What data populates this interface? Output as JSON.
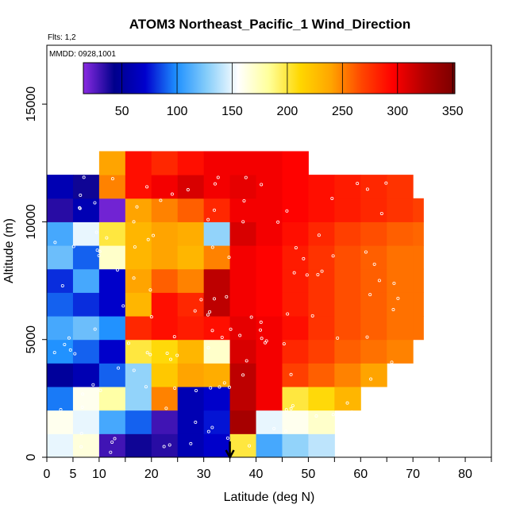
{
  "chart_data": {
    "type": "heatmap",
    "title": "ATOM3 Northeast_Pacific_1 Wind_Direction",
    "subtitle_flights": "Flts: 1,2",
    "subtitle_dates": "MMDD: 0928,1001",
    "xlabel": "Latitude (deg N)",
    "ylabel": "Altitude (m)",
    "xlim": [
      0,
      85
    ],
    "ylim": [
      0,
      18000
    ],
    "x_ticks": [
      0,
      5,
      10,
      20,
      30,
      40,
      50,
      60,
      70,
      80
    ],
    "x_minor_ticks": [
      15,
      25,
      35,
      45,
      55,
      65,
      75,
      85
    ],
    "y_ticks": [
      0,
      5000,
      10000,
      15000
    ],
    "colorbar": {
      "range": [
        15,
        352
      ],
      "ticks": [
        50,
        100,
        150,
        200,
        250,
        300,
        350
      ],
      "colors": [
        "#8a2be2",
        "#00008b",
        "#0000cd",
        "#1e90ff",
        "#87cefa",
        "#ffffff",
        "#ffff99",
        "#ffd700",
        "#ffa500",
        "#ff4500",
        "#ff0000",
        "#b20000",
        "#7a0000"
      ]
    },
    "latitude_marker": 35,
    "field": {
      "description_levels": "wind direction (deg) by latitude band and altitude band",
      "lat_edges": [
        0,
        5,
        10,
        15,
        20,
        25,
        30,
        35,
        40,
        45,
        50,
        55,
        60,
        65,
        70,
        72
      ],
      "alt_edges": [
        0,
        1000,
        2000,
        3000,
        4000,
        5000,
        6000,
        7000,
        8000,
        9000,
        10000,
        11000,
        12000,
        13000
      ],
      "values": [
        [
          150,
          165,
          30,
          40,
          35,
          60,
          70,
          200,
          110,
          130,
          140,
          null,
          null,
          null,
          null
        ],
        [
          160,
          150,
          110,
          90,
          30,
          60,
          75,
          330,
          150,
          160,
          170,
          null,
          null,
          null,
          null
        ],
        [
          95,
          160,
          180,
          130,
          250,
          60,
          70,
          320,
          300,
          200,
          210,
          230,
          null,
          null,
          null
        ],
        [
          50,
          60,
          90,
          130,
          220,
          240,
          235,
          320,
          300,
          270,
          260,
          250,
          240,
          null,
          null
        ],
        [
          100,
          90,
          70,
          200,
          210,
          230,
          170,
          310,
          300,
          280,
          270,
          260,
          255,
          250,
          null
        ],
        [
          110,
          120,
          100,
          280,
          290,
          285,
          290,
          305,
          300,
          290,
          275,
          265,
          260,
          255,
          255
        ],
        [
          90,
          80,
          70,
          230,
          290,
          280,
          320,
          300,
          295,
          285,
          275,
          265,
          260,
          255,
          255
        ],
        [
          80,
          110,
          70,
          240,
          260,
          250,
          320,
          300,
          295,
          285,
          275,
          265,
          260,
          255,
          255
        ],
        [
          120,
          90,
          170,
          230,
          240,
          230,
          250,
          300,
          295,
          285,
          275,
          265,
          260,
          255,
          255
        ],
        [
          110,
          150,
          200,
          230,
          240,
          235,
          130,
          310,
          300,
          290,
          280,
          270,
          265,
          260,
          258
        ],
        [
          35,
          60,
          20,
          240,
          250,
          260,
          280,
          300,
          300,
          295,
          290,
          285,
          280,
          275,
          270
        ],
        [
          60,
          40,
          250,
          290,
          300,
          310,
          300,
          305,
          300,
          295,
          290,
          285,
          280,
          275,
          null
        ],
        [
          null,
          null,
          240,
          290,
          280,
          290,
          300,
          300,
          300,
          295,
          null,
          null,
          null,
          null,
          null
        ]
      ]
    }
  }
}
